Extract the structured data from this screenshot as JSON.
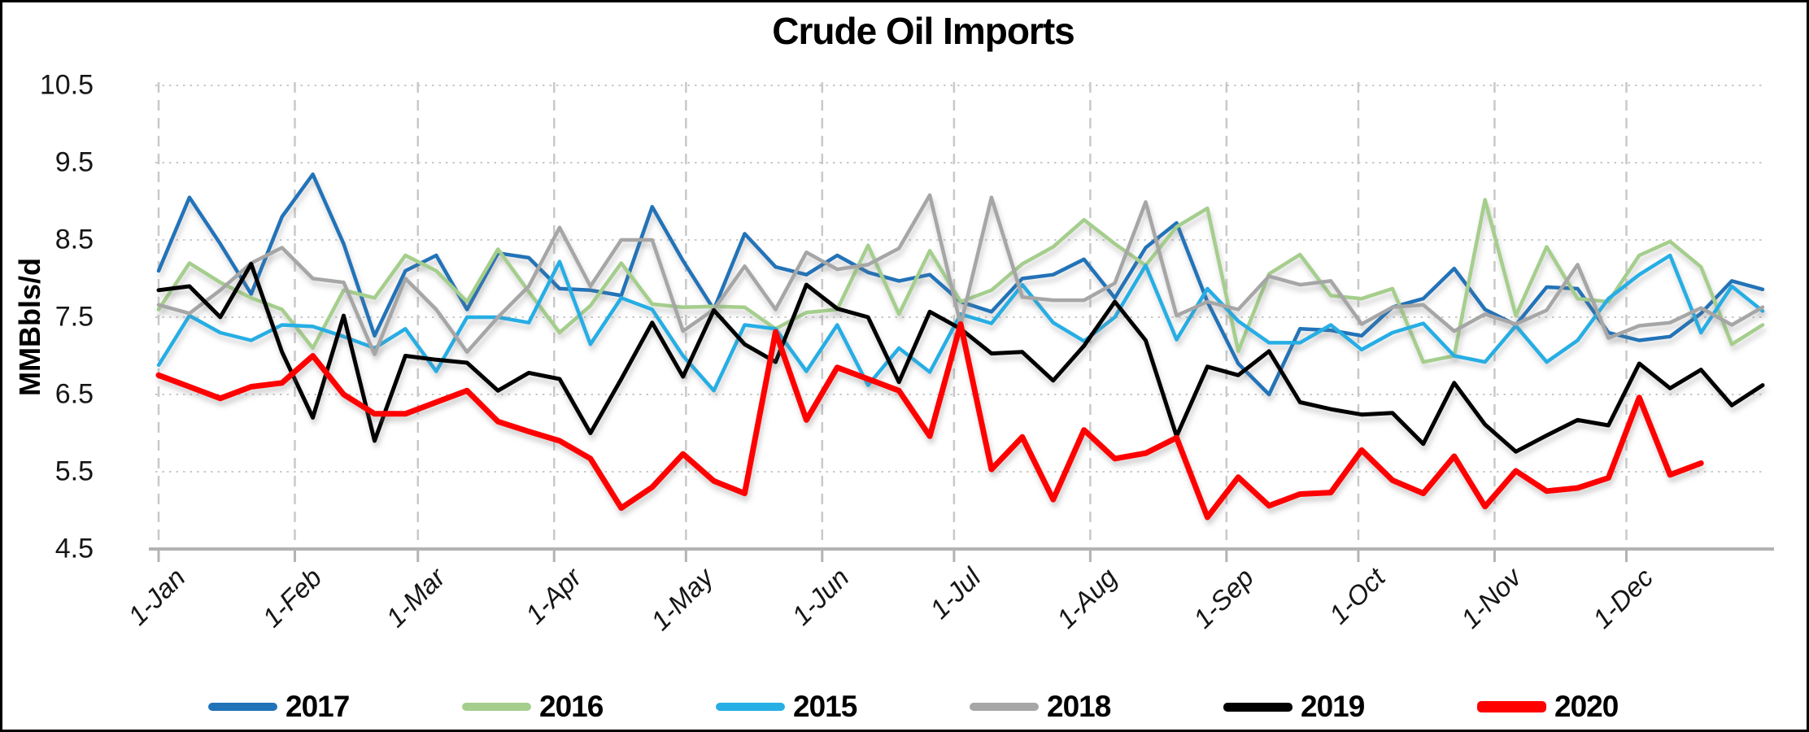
{
  "chart": {
    "title": "Crude Oil Imports",
    "y_axis": {
      "title": "MMBbls/d",
      "min": 4.5,
      "max": 10.5,
      "step": 1.0,
      "tick_labels": [
        "10.5",
        "9.5",
        "8.5",
        "7.5",
        "6.5",
        "5.5",
        "4.5"
      ]
    },
    "x_axis": {
      "tick_labels": [
        "1-Jan",
        "1-Feb",
        "1-Mar",
        "1-Apr",
        "1-May",
        "1-Jun",
        "1-Jul",
        "1-Aug",
        "1-Sep",
        "1-Oct",
        "1-Nov",
        "1-Dec"
      ],
      "month_day_offsets": [
        0,
        31,
        59,
        90,
        120,
        151,
        181,
        212,
        243,
        273,
        304,
        334
      ],
      "days_in_year": 365
    },
    "grid": {
      "horizontal": true,
      "vertical": true
    },
    "legend_position": "bottom"
  },
  "chart_data": {
    "type": "line",
    "title": "Crude Oil Imports",
    "xlabel": "",
    "ylabel": "MMBbls/d",
    "ylim": [
      4.5,
      10.5
    ],
    "x_unit": "weekly points, Jan 1 - Dec 31",
    "points_per_year": 53,
    "series": [
      {
        "name": "2017",
        "color": "#2173b8",
        "width": 4.5,
        "values": [
          8.1,
          9.05,
          8.45,
          7.8,
          8.8,
          9.35,
          8.45,
          7.26,
          8.1,
          8.3,
          7.6,
          8.33,
          8.27,
          7.87,
          7.85,
          7.78,
          8.93,
          8.23,
          7.6,
          8.58,
          8.15,
          8.05,
          8.3,
          8.08,
          7.97,
          8.05,
          7.7,
          7.57,
          8.0,
          8.05,
          8.25,
          7.75,
          8.4,
          8.72,
          7.7,
          6.9,
          6.5,
          7.35,
          7.33,
          7.26,
          7.63,
          7.74,
          8.13,
          7.6,
          7.4,
          7.89,
          7.87,
          7.3,
          7.2,
          7.25,
          7.55,
          7.97,
          7.86
        ]
      },
      {
        "name": "2016",
        "color": "#a5ce8d",
        "width": 4.5,
        "values": [
          7.6,
          8.2,
          7.95,
          7.75,
          7.6,
          7.1,
          7.85,
          7.75,
          8.3,
          8.1,
          7.7,
          8.38,
          7.83,
          7.3,
          7.65,
          8.2,
          7.67,
          7.63,
          7.64,
          7.63,
          7.35,
          7.56,
          7.6,
          8.43,
          7.54,
          8.36,
          7.7,
          7.85,
          8.19,
          8.41,
          8.76,
          8.45,
          8.17,
          8.67,
          8.91,
          7.06,
          8.06,
          8.31,
          7.78,
          7.74,
          7.87,
          6.92,
          7.0,
          9.02,
          7.52,
          8.41,
          7.74,
          7.7,
          8.3,
          8.48,
          8.15,
          7.15,
          7.4
        ]
      },
      {
        "name": "2015",
        "color": "#27aee4",
        "width": 4.5,
        "values": [
          6.88,
          7.52,
          7.3,
          7.2,
          7.4,
          7.38,
          7.25,
          7.1,
          7.35,
          6.8,
          7.5,
          7.5,
          7.43,
          8.22,
          7.15,
          7.75,
          7.6,
          7.0,
          6.55,
          7.4,
          7.35,
          6.8,
          7.4,
          6.62,
          7.1,
          6.79,
          7.54,
          7.42,
          7.92,
          7.43,
          7.19,
          7.5,
          8.17,
          7.21,
          7.87,
          7.45,
          7.17,
          7.17,
          7.4,
          7.08,
          7.3,
          7.42,
          7.0,
          6.92,
          7.39,
          6.92,
          7.2,
          7.74,
          8.05,
          8.3,
          7.3,
          7.9,
          7.58
        ]
      },
      {
        "name": "2018",
        "color": "#a6a6a6",
        "width": 4.5,
        "values": [
          7.66,
          7.55,
          7.85,
          8.2,
          8.4,
          8.0,
          7.95,
          7.02,
          8.0,
          7.6,
          7.05,
          7.5,
          7.9,
          8.66,
          7.9,
          8.5,
          8.5,
          7.32,
          7.6,
          8.16,
          7.6,
          8.34,
          8.12,
          8.18,
          8.39,
          9.08,
          7.4,
          9.05,
          7.76,
          7.72,
          7.72,
          7.94,
          8.99,
          7.52,
          7.7,
          7.6,
          8.03,
          7.92,
          7.97,
          7.41,
          7.63,
          7.66,
          7.32,
          7.54,
          7.41,
          7.59,
          8.18,
          7.23,
          7.39,
          7.43,
          7.62,
          7.4,
          7.63
        ]
      },
      {
        "name": "2019",
        "color": "#000000",
        "width": 5,
        "values": [
          7.85,
          7.9,
          7.5,
          8.19,
          7.05,
          6.2,
          7.52,
          5.9,
          7.0,
          6.95,
          6.91,
          6.55,
          6.78,
          6.7,
          6.0,
          6.7,
          7.43,
          6.73,
          7.59,
          7.15,
          6.92,
          7.92,
          7.61,
          7.5,
          6.66,
          7.57,
          7.35,
          7.03,
          7.05,
          6.68,
          7.13,
          7.7,
          7.2,
          5.96,
          6.86,
          6.75,
          7.06,
          6.4,
          6.31,
          6.24,
          6.26,
          5.86,
          6.65,
          6.11,
          5.76,
          5.97,
          6.17,
          6.1,
          6.9,
          6.58,
          6.82,
          6.36,
          6.62
        ]
      },
      {
        "name": "2020",
        "color": "#fe0000",
        "width": 7,
        "values": [
          6.75,
          6.6,
          6.45,
          6.6,
          6.65,
          7.0,
          6.5,
          6.25,
          6.25,
          6.4,
          6.55,
          6.15,
          6.02,
          5.9,
          5.67,
          5.03,
          5.3,
          5.73,
          5.38,
          5.22,
          7.31,
          6.17,
          6.85,
          6.7,
          6.55,
          5.96,
          7.41,
          5.53,
          5.95,
          5.14,
          6.04,
          5.67,
          5.74,
          5.94,
          4.91,
          5.43,
          5.06,
          5.21,
          5.23,
          5.78,
          5.39,
          5.22,
          5.7,
          5.05,
          5.51,
          5.25,
          5.29,
          5.42,
          6.46,
          5.46,
          5.61
        ]
      }
    ],
    "legend": [
      "2017",
      "2016",
      "2015",
      "2018",
      "2019",
      "2020"
    ]
  },
  "colors": {
    "gridline": "#c9c9c9",
    "axis": "#b3b3b3",
    "text": "#161616"
  }
}
